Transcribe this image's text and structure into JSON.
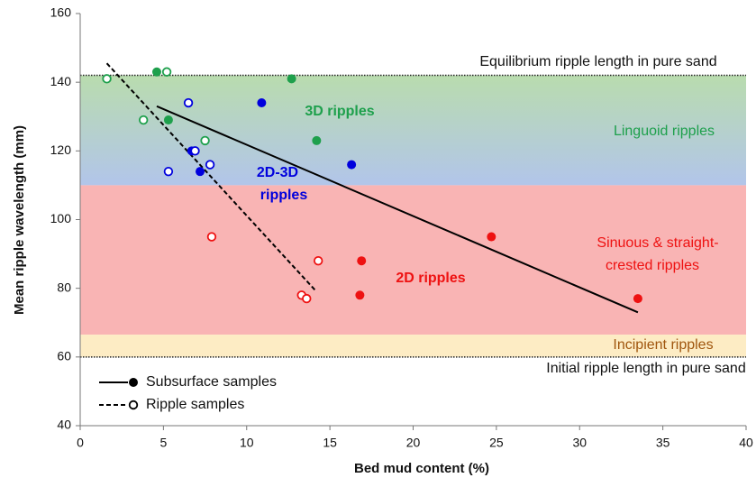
{
  "chart_data": {
    "type": "scatter",
    "xlabel": "Bed mud content (%)",
    "ylabel": "Mean ripple wavelength (mm)",
    "xlim": [
      0,
      40
    ],
    "ylim": [
      40,
      160
    ],
    "xticks": [
      0,
      5,
      10,
      15,
      20,
      25,
      30,
      35,
      40
    ],
    "yticks": [
      40,
      60,
      80,
      100,
      120,
      140,
      160
    ],
    "bands": [
      {
        "range": [
          110,
          142
        ],
        "colors": [
          "#b9dcae",
          "#b2c5ea"
        ]
      },
      {
        "range": [
          66.5,
          110
        ],
        "colors": [
          "#f9b4b4",
          "#f9b4b4"
        ]
      },
      {
        "range": [
          60,
          66.5
        ],
        "colors": [
          "#fdecc4",
          "#fdecc4"
        ]
      }
    ],
    "hlines": [
      142,
      60
    ],
    "series": [
      {
        "name": "Subsurface samples",
        "marker": "filled",
        "x": [
          4.6,
          5.3,
          12.7,
          14.2,
          10.9,
          7.2,
          16.3,
          6.7,
          24.7,
          16.9,
          16.8,
          33.5
        ],
        "values": [
          143,
          129,
          141,
          123,
          134,
          114,
          116,
          120,
          95,
          88,
          78,
          77
        ],
        "colors": [
          "#1ea04c",
          "#1ea04c",
          "#1ea04c",
          "#1ea04c",
          "#0000dd",
          "#0000dd",
          "#0000dd",
          "#0000dd",
          "#ee1111",
          "#ee1111",
          "#ee1111",
          "#ee1111"
        ],
        "trend": {
          "x": [
            4.6,
            33.5
          ],
          "values": [
            133,
            73
          ],
          "dash": false
        }
      },
      {
        "name": "Ripple samples",
        "marker": "open",
        "x": [
          1.6,
          5.2,
          3.8,
          7.5,
          6.5,
          5.3,
          7.8,
          6.9,
          7.9,
          14.3,
          13.3,
          13.6
        ],
        "values": [
          141,
          143,
          129,
          123,
          134,
          114,
          116,
          120,
          95,
          88,
          78,
          77
        ],
        "colors": [
          "#1ea04c",
          "#1ea04c",
          "#1ea04c",
          "#1ea04c",
          "#0000dd",
          "#0000dd",
          "#0000dd",
          "#0000dd",
          "#ee1111",
          "#ee1111",
          "#ee1111",
          "#ee1111"
        ],
        "trend": {
          "x": [
            1.6,
            14.2
          ],
          "values": [
            145.5,
            79
          ],
          "dash": true
        }
      }
    ],
    "annotations": [
      {
        "text": [
          "Equilibrium ripple length in pure sand"
        ],
        "color": "#111111",
        "bold": false
      },
      {
        "text": [
          "Linguoid ripples"
        ],
        "color": "#1ea04c",
        "bold": false
      },
      {
        "text": [
          "3D ripples"
        ],
        "color": "#1ea04c",
        "bold": true
      },
      {
        "text": [
          "2D-3D",
          "ripples"
        ],
        "color": "#0000dd",
        "bold": true
      },
      {
        "text": [
          "Sinuous & straight-",
          "crested ripples"
        ],
        "color": "#ee1111",
        "bold": false
      },
      {
        "text": [
          "2D ripples"
        ],
        "color": "#ee1111",
        "bold": true
      },
      {
        "text": [
          "Incipient ripples"
        ],
        "color": "#a0560e",
        "bold": false
      },
      {
        "text": [
          "Initial ripple length in pure sand"
        ],
        "color": "#111111",
        "bold": false
      }
    ]
  }
}
